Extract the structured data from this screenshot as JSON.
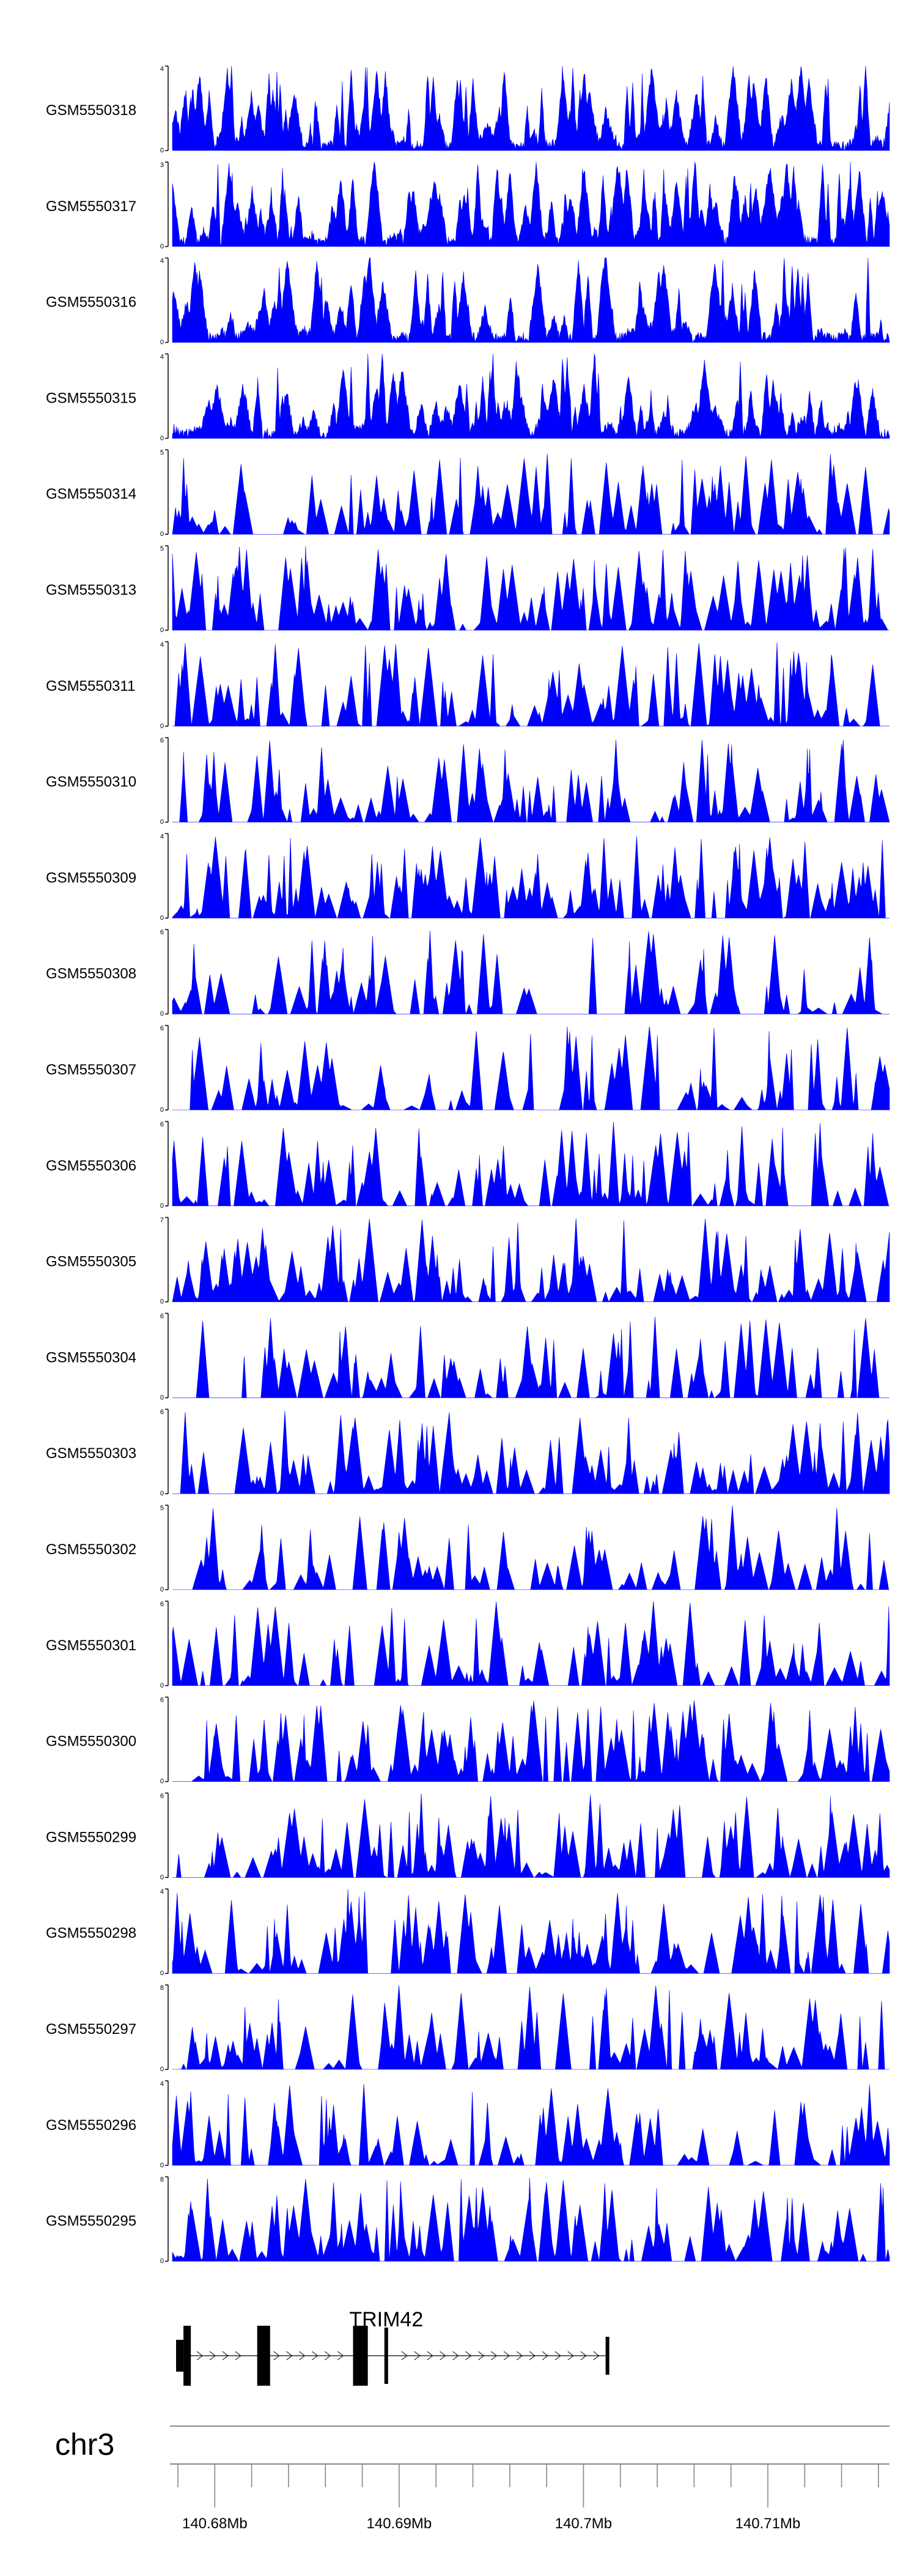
{
  "colors": {
    "signal": "#0000ff",
    "axis": "#000000",
    "gene": "#000000",
    "ideogram": "#888888"
  },
  "chart_data": {
    "type": "area",
    "tracks": [
      {
        "sample": "GSM5550318",
        "ymax": "4",
        "ymin": "0",
        "vmax": 4
      },
      {
        "sample": "GSM5550317",
        "ymax": "3",
        "ymin": "0",
        "vmax": 3
      },
      {
        "sample": "GSM5550316",
        "ymax": "4",
        "ymin": "0",
        "vmax": 4
      },
      {
        "sample": "GSM5550315",
        "ymax": "4",
        "ymin": "0",
        "vmax": 4
      },
      {
        "sample": "GSM5550314",
        "ymax": "5",
        "ymin": "0",
        "vmax": 5
      },
      {
        "sample": "GSM5550313",
        "ymax": "5",
        "ymin": "0",
        "vmax": 5
      },
      {
        "sample": "GSM5550311",
        "ymax": "4",
        "ymin": "0",
        "vmax": 4
      },
      {
        "sample": "GSM5550310",
        "ymax": "6",
        "ymin": "0",
        "vmax": 6
      },
      {
        "sample": "GSM5550309",
        "ymax": "4",
        "ymin": "0",
        "vmax": 4
      },
      {
        "sample": "GSM5550308",
        "ymax": "6",
        "ymin": "0",
        "vmax": 6
      },
      {
        "sample": "GSM5550307",
        "ymax": "6",
        "ymin": "0",
        "vmax": 6
      },
      {
        "sample": "GSM5550306",
        "ymax": "6",
        "ymin": "0",
        "vmax": 6
      },
      {
        "sample": "GSM5550305",
        "ymax": "7",
        "ymin": "0",
        "vmax": 7
      },
      {
        "sample": "GSM5550304",
        "ymax": "6",
        "ymin": "0",
        "vmax": 6
      },
      {
        "sample": "GSM5550303",
        "ymax": "6",
        "ymin": "0",
        "vmax": 6
      },
      {
        "sample": "GSM5550302",
        "ymax": "5",
        "ymin": "0",
        "vmax": 5
      },
      {
        "sample": "GSM5550301",
        "ymax": "6",
        "ymin": "0",
        "vmax": 6
      },
      {
        "sample": "GSM5550300",
        "ymax": "6",
        "ymin": "0",
        "vmax": 6
      },
      {
        "sample": "GSM5550299",
        "ymax": "6",
        "ymin": "0",
        "vmax": 6
      },
      {
        "sample": "GSM5550298",
        "ymax": "4",
        "ymin": "0",
        "vmax": 4
      },
      {
        "sample": "GSM5550297",
        "ymax": "8",
        "ymin": "0",
        "vmax": 8
      },
      {
        "sample": "GSM5550296",
        "ymax": "4",
        "ymin": "0",
        "vmax": 4
      },
      {
        "sample": "GSM5550295",
        "ymax": "8",
        "ymin": "0",
        "vmax": 8
      }
    ],
    "gene": {
      "name": "TRIM42",
      "start_mb": 140.6779,
      "end_mb": 140.7014,
      "strand": "+"
    },
    "exons_mb": [
      [
        140.6779,
        140.6783
      ],
      [
        140.6783,
        140.6787
      ],
      [
        140.6823,
        140.683
      ],
      [
        140.6875,
        140.6883
      ],
      [
        140.6892,
        140.6894
      ],
      [
        140.7012,
        140.7014
      ]
    ],
    "chromosome": "chr3",
    "x_axis": {
      "range_mb": [
        140.6777,
        140.7166
      ],
      "labels": [
        "140.68Mb",
        "140.69Mb",
        "140.7Mb",
        "140.71Mb"
      ],
      "label_values_mb": [
        140.68,
        140.69,
        140.7,
        140.71
      ],
      "minor_tick_step_mb": 0.002
    }
  }
}
